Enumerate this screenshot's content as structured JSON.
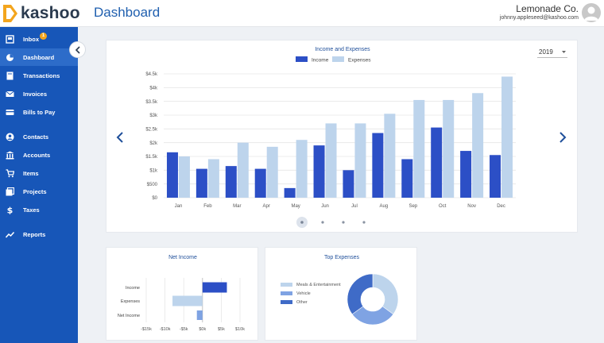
{
  "app": {
    "logo_text": "kashoo",
    "page_title": "Dashboard"
  },
  "account": {
    "company": "Lemonade Co.",
    "email": "johnny.appleseed@kashoo.com"
  },
  "colors": {
    "accent": "#1756b8",
    "income": "#2c4fc6",
    "expenses": "#bdd4ec",
    "orange": "#f3a51d"
  },
  "sidebar": {
    "items": [
      {
        "label": "Inbox",
        "icon": "inbox-icon",
        "badge": "1"
      },
      {
        "label": "Dashboard",
        "icon": "dashboard-icon",
        "active": true
      },
      {
        "label": "Transactions",
        "icon": "transactions-icon"
      },
      {
        "label": "Invoices",
        "icon": "invoices-icon"
      },
      {
        "label": "Bills to Pay",
        "icon": "bills-icon"
      },
      {
        "label": "Contacts",
        "icon": "contacts-icon"
      },
      {
        "label": "Accounts",
        "icon": "accounts-icon"
      },
      {
        "label": "Items",
        "icon": "cart-icon"
      },
      {
        "label": "Projects",
        "icon": "projects-icon"
      },
      {
        "label": "Taxes",
        "icon": "dollar-icon"
      },
      {
        "label": "Reports",
        "icon": "reports-icon"
      }
    ]
  },
  "income_card": {
    "year": "2019"
  },
  "chart_data": [
    {
      "type": "bar",
      "title": "Income and Expenses",
      "categories": [
        "Jan",
        "Feb",
        "Mar",
        "Apr",
        "May",
        "Jun",
        "Jul",
        "Aug",
        "Sep",
        "Oct",
        "Nov",
        "Dec"
      ],
      "series": [
        {
          "name": "Income",
          "values": [
            1650,
            1050,
            1150,
            1050,
            350,
            1900,
            1000,
            2350,
            1400,
            2550,
            1700,
            1550
          ]
        },
        {
          "name": "Expenses",
          "values": [
            1500,
            1400,
            2000,
            1850,
            2100,
            2700,
            2700,
            3050,
            3550,
            3550,
            3800,
            4400
          ]
        }
      ],
      "y_ticks": [
        "$0",
        "$500",
        "$1k",
        "$1.5k",
        "$2k",
        "$2.5k",
        "$3k",
        "$3.5k",
        "$4k",
        "$4.5k"
      ],
      "ylim": [
        0,
        4500
      ],
      "legend": "top-center",
      "grid": true
    },
    {
      "type": "bar",
      "orientation": "horizontal",
      "title": "Net Income",
      "categories": [
        "Income",
        "Expenses",
        "Net Income"
      ],
      "values": [
        6500,
        -8000,
        -1500
      ],
      "x_ticks": [
        "-$15k",
        "-$10k",
        "-$5k",
        "$0k",
        "$5k",
        "$10k"
      ],
      "xlim": [
        -15000,
        10000
      ],
      "grid": true
    },
    {
      "type": "pie",
      "donut": true,
      "title": "Top Expenses",
      "labels": [
        "Meals & Entertainment",
        "Vehicle",
        "Other"
      ],
      "values": [
        35,
        30,
        35
      ],
      "legend": "left"
    }
  ]
}
